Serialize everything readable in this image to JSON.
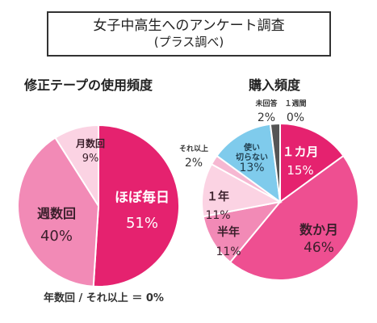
{
  "header": {
    "title": "女子中高生へのアンケート調査",
    "subtitle": "(プラス調べ)"
  },
  "colors": {
    "hot_pink": "#e5226f",
    "medium_pink": "#ee4f91",
    "light_pink": "#f28ab6",
    "pale_pink": "#fbd3e3",
    "sky_blue": "#7fcbec",
    "dark_gray": "#555555",
    "outline": "#ffffff"
  },
  "footnote": "年数回 / それ以上 ＝ 0%",
  "chart_data": [
    {
      "type": "pie",
      "title": "修正テープの使用頻度",
      "slices": [
        {
          "label": "ほぼ毎日",
          "value": 51,
          "value_text": "51%",
          "color": "#e5226f"
        },
        {
          "label": "週数回",
          "value": 40,
          "value_text": "40%",
          "color": "#f28ab6"
        },
        {
          "label": "月数回",
          "value": 9,
          "value_text": "9%",
          "color": "#fbd3e3"
        },
        {
          "label": "年数回 / それ以上",
          "value": 0,
          "value_text": "0%"
        }
      ]
    },
    {
      "type": "pie",
      "title": "購入頻度",
      "slices": [
        {
          "label": "１週間",
          "value": 0,
          "value_text": "0%",
          "color": "#555555"
        },
        {
          "label": "１カ月",
          "value": 15,
          "value_text": "15%",
          "color": "#e5226f"
        },
        {
          "label": "数か月",
          "value": 46,
          "value_text": "46%",
          "color": "#ee4f91"
        },
        {
          "label": "半年",
          "value": 11,
          "value_text": "11%",
          "color": "#f28ab6"
        },
        {
          "label": "１年",
          "value": 11,
          "value_text": "11%",
          "color": "#fbd3e3"
        },
        {
          "label": "それ以上",
          "value": 2,
          "value_text": "2%",
          "color": "#f6b8d2"
        },
        {
          "label": "使い切らない",
          "value": 13,
          "value_text": "13%",
          "color": "#7fcbec"
        },
        {
          "label": "未回答",
          "value": 2,
          "value_text": "2%",
          "color": "#555555"
        }
      ]
    }
  ]
}
